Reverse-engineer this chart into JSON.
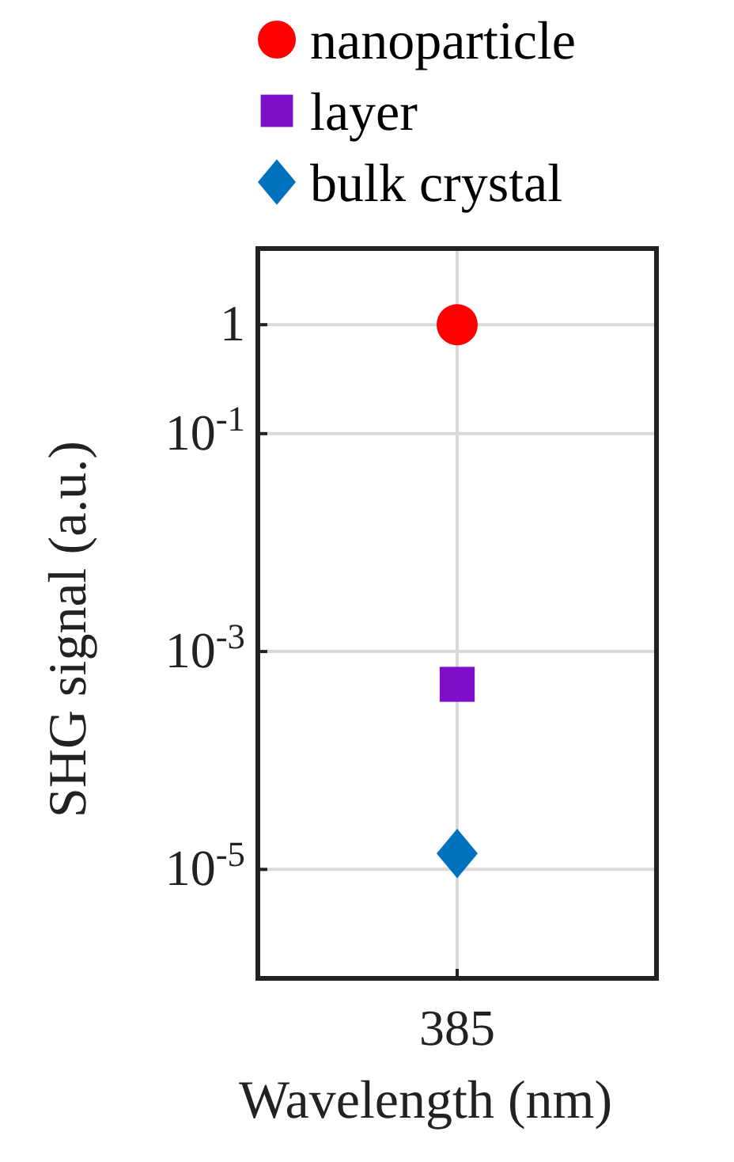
{
  "chart_data": {
    "type": "scatter",
    "xlabel": "Wavelength (nm)",
    "ylabel": "SHG signal (a.u.)",
    "categories": [
      "385"
    ],
    "series": [
      {
        "name": "nanoparticle",
        "color": "#ff0000",
        "marker": "circle",
        "values": [
          1
        ]
      },
      {
        "name": "layer",
        "color": "#7e0ec9",
        "marker": "square",
        "values": [
          0.0005
        ]
      },
      {
        "name": "bulk crystal",
        "color": "#0072bd",
        "marker": "diamond",
        "values": [
          1.4e-05
        ]
      }
    ],
    "log": "y",
    "ylim": [
      1e-06,
      5
    ],
    "yticks": [
      1,
      {
        "value": 0.1,
        "label": "10$^{-1}$"
      },
      {
        "value": 0.001,
        "label": "10$^{-3}$"
      },
      {
        "value": 1e-05,
        "label": "10$^{-5}$"
      }
    ],
    "grid": true,
    "legend": "top"
  }
}
